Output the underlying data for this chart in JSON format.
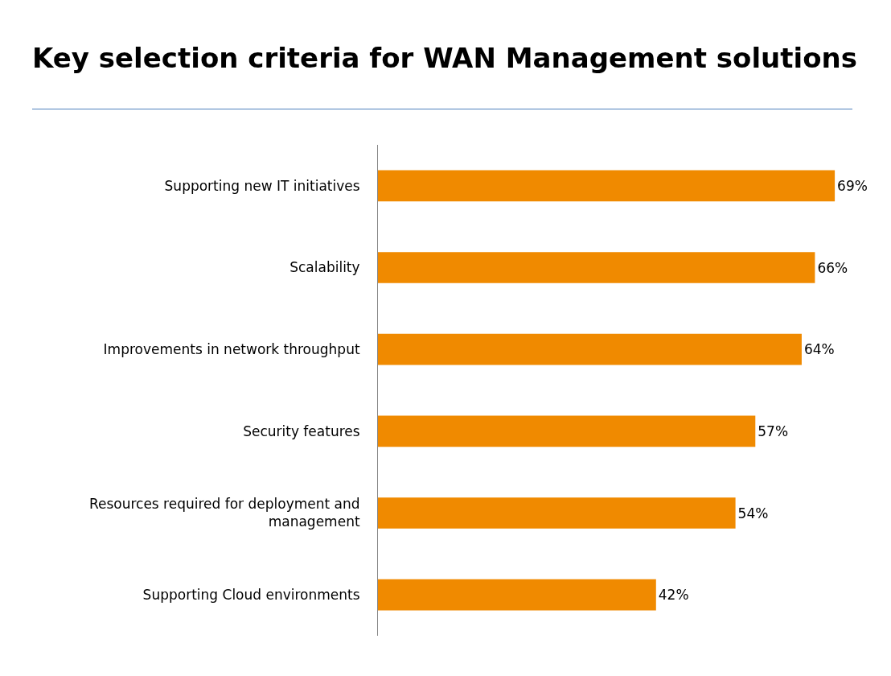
{
  "chart_data": {
    "type": "bar",
    "orientation": "horizontal",
    "title": "Key selection criteria for WAN Management solutions",
    "categories": [
      "Supporting new IT initiatives",
      "Scalability",
      "Improvements in network throughput",
      "Security features",
      "Resources required for deployment and management",
      "Supporting Cloud environments"
    ],
    "values": [
      69,
      66,
      64,
      57,
      54,
      42
    ],
    "value_labels": [
      "69%",
      "66%",
      "64%",
      "57%",
      "54%",
      "42%"
    ],
    "color": "#f08a00"
  }
}
